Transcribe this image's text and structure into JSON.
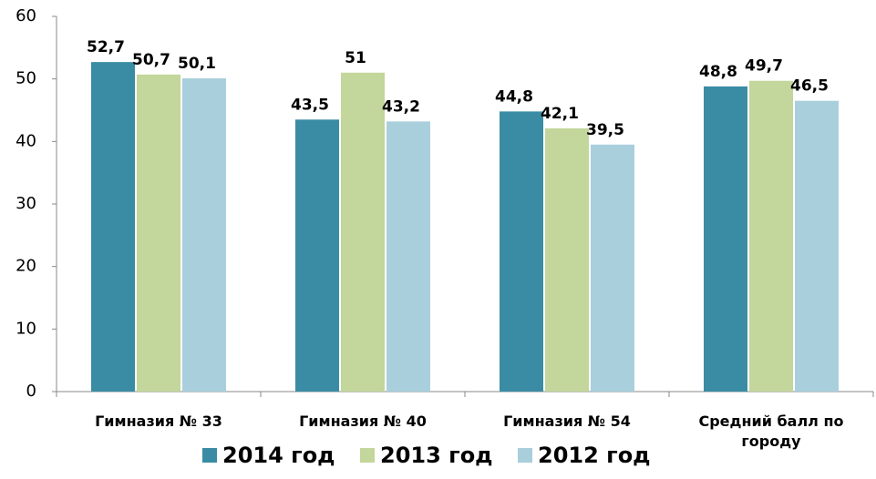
{
  "chart_data": {
    "type": "bar",
    "categories": [
      "Гимназия № 33",
      "Гимназия № 40",
      "Гимназия № 54",
      "Средний балл по городу"
    ],
    "series": [
      {
        "name": "2014 год",
        "color": "#3a8ca4",
        "values": [
          52.7,
          43.5,
          44.8,
          48.8
        ],
        "value_labels": [
          "52,7",
          "43,5",
          "44,8",
          "48,8"
        ]
      },
      {
        "name": "2013 год",
        "color": "#c3d69b",
        "values": [
          50.7,
          51,
          42.1,
          49.7
        ],
        "value_labels": [
          "50,7",
          "51",
          "42,1",
          "49,7"
        ]
      },
      {
        "name": "2012 год",
        "color": "#a9cfdc",
        "values": [
          50.1,
          43.2,
          39.5,
          46.5
        ],
        "value_labels": [
          "50,1",
          "43,2",
          "39,5",
          "46,5"
        ]
      }
    ],
    "ylim": [
      0,
      60
    ],
    "yticks": [
      0,
      10,
      20,
      30,
      40,
      50,
      60
    ],
    "grid": false,
    "legend": "bottom"
  }
}
